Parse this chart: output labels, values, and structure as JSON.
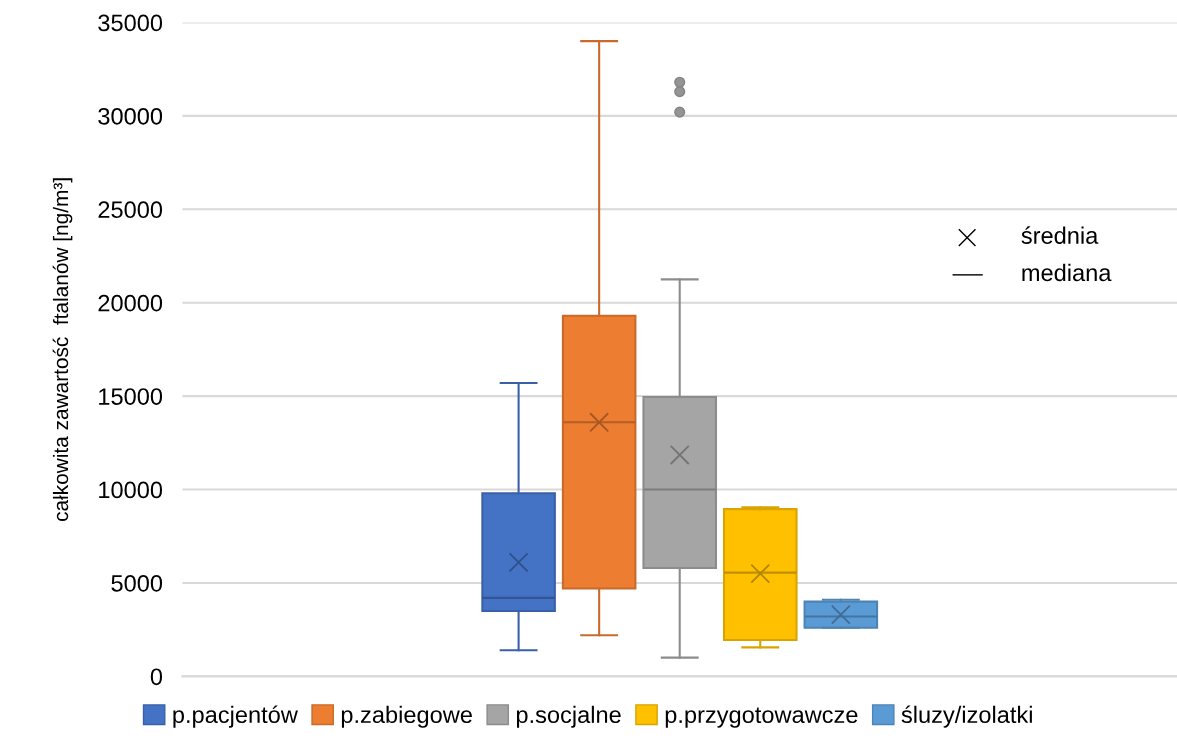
{
  "chart_data": {
    "type": "box",
    "ylabel": "całkowita zawartość  ftalanów [ng/m³]",
    "categories": [
      null
    ],
    "series": [
      {
        "name": "p.pacjentów",
        "color": "#4472c4",
        "boxes": [
          {
            "low": 1400,
            "q1": 3500,
            "median": 4200,
            "q3": 9800,
            "high": 15700,
            "mean": 6100
          }
        ]
      },
      {
        "name": "p.zabiegowe",
        "color": "#ed7d31",
        "boxes": [
          {
            "low": 2200,
            "q1": 4700,
            "median": 13600,
            "q3": 19300,
            "high": 34000,
            "mean": 13600
          }
        ]
      },
      {
        "name": "p.socjalne",
        "color": "#a5a5a5",
        "boxes": [
          {
            "low": 1000,
            "q1": 5800,
            "median": 10000,
            "q3": 14950,
            "high": 21250,
            "mean": 11850,
            "outliers": [
              31800,
              31300,
              30200
            ]
          }
        ]
      },
      {
        "name": "p.przygotowawcze",
        "color": "#ffc000",
        "boxes": [
          {
            "low": 1550,
            "q1": 1950,
            "median": 5550,
            "q3": 8950,
            "high": 9050,
            "mean": 5500
          }
        ]
      },
      {
        "name": "śluzy/izolatki",
        "color": "#5b9bd5",
        "boxes": [
          {
            "low": 2600,
            "q1": 2600,
            "median": 3200,
            "q3": 4000,
            "high": 4100,
            "mean": 3300
          }
        ]
      }
    ],
    "annotations": [
      "średnia",
      "mediana"
    ],
    "ylim": [
      0,
      35000
    ],
    "yticks": [
      0,
      5000,
      10000,
      15000,
      20000,
      25000,
      30000,
      35000
    ],
    "grid": "y",
    "legend": "bottom",
    "marker": "cross"
  }
}
